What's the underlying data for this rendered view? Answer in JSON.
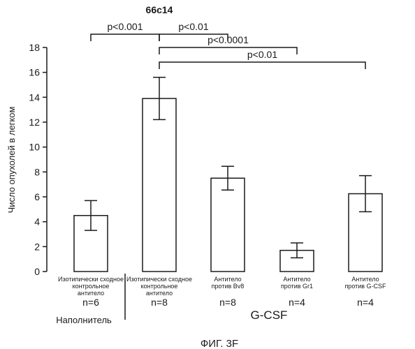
{
  "chart_data": {
    "type": "bar",
    "title": "66c14",
    "ylabel": "Число опухолей в легком",
    "ylim": [
      0,
      18
    ],
    "yticks": [
      0,
      2,
      4,
      6,
      8,
      10,
      12,
      14,
      16,
      18
    ],
    "categories": [
      [
        "Изотипически сходное",
        "контрольное",
        "антитело"
      ],
      [
        "Изотипически сходное",
        "контрольное",
        "антитело"
      ],
      [
        "Антитело",
        "против Bv8"
      ],
      [
        "Антитело",
        "против Gr1"
      ],
      [
        "Антитело",
        "против G-CSF"
      ]
    ],
    "n_labels": [
      "n=6",
      "n=8",
      "n=8",
      "n=4",
      "n=4"
    ],
    "values": [
      4.5,
      13.9,
      7.5,
      1.7,
      6.25
    ],
    "errors": [
      1.2,
      1.7,
      0.95,
      0.6,
      1.45
    ],
    "groups": [
      {
        "label": "Наполнитель",
        "bars": [
          0
        ]
      },
      {
        "label": "G-CSF",
        "bars": [
          1,
          2,
          3,
          4
        ]
      }
    ],
    "significance": [
      {
        "from": 0,
        "to": 1,
        "label": "p<0.001"
      },
      {
        "from": 1,
        "to": 2,
        "label": "p<0.01"
      },
      {
        "from": 1,
        "to": 3,
        "label": "p<0.0001"
      },
      {
        "from": 1,
        "to": 4,
        "label": "p<0.01"
      }
    ],
    "grid": false,
    "colors": {
      "bar_fill": "#ffffff",
      "stroke": "#1a1a1a"
    }
  },
  "caption": "ФИГ. 3F"
}
